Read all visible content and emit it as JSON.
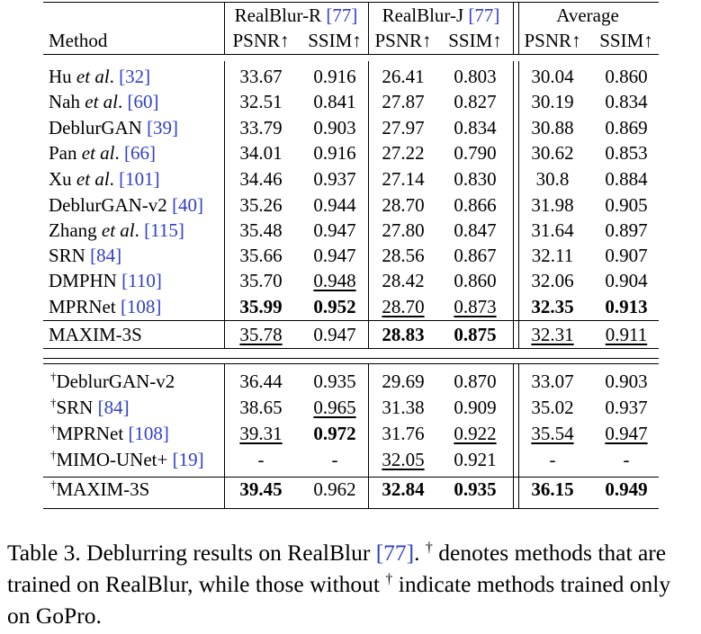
{
  "table": {
    "groups": [
      "RealBlur-R",
      "RealBlur-J",
      "Average"
    ],
    "group_cites": [
      "[77]",
      "[77]",
      ""
    ],
    "method_header": "Method",
    "metric_headers": [
      "PSNR↑",
      "SSIM↑",
      "PSNR↑",
      "SSIM↑",
      "PSNR↑",
      "SSIM↑"
    ],
    "rows": [
      {
        "pre": "Hu ",
        "it": "et al",
        "post": ". ",
        "cite": "[32]",
        "dag": false,
        "vals": [
          "33.67",
          "0.916",
          "26.41",
          "0.803",
          "30.04",
          "0.860"
        ],
        "bold": [
          0,
          0,
          0,
          0,
          0,
          0
        ],
        "ul": [
          0,
          0,
          0,
          0,
          0,
          0
        ]
      },
      {
        "pre": "Nah ",
        "it": "et al",
        "post": ". ",
        "cite": "[60]",
        "dag": false,
        "vals": [
          "32.51",
          "0.841",
          "27.87",
          "0.827",
          "30.19",
          "0.834"
        ],
        "bold": [
          0,
          0,
          0,
          0,
          0,
          0
        ],
        "ul": [
          0,
          0,
          0,
          0,
          0,
          0
        ]
      },
      {
        "pre": "DeblurGAN ",
        "it": "",
        "post": "",
        "cite": "[39]",
        "dag": false,
        "vals": [
          "33.79",
          "0.903",
          "27.97",
          "0.834",
          "30.88",
          "0.869"
        ],
        "bold": [
          0,
          0,
          0,
          0,
          0,
          0
        ],
        "ul": [
          0,
          0,
          0,
          0,
          0,
          0
        ]
      },
      {
        "pre": "Pan ",
        "it": "et al",
        "post": ". ",
        "cite": "[66]",
        "dag": false,
        "vals": [
          "34.01",
          "0.916",
          "27.22",
          "0.790",
          "30.62",
          "0.853"
        ],
        "bold": [
          0,
          0,
          0,
          0,
          0,
          0
        ],
        "ul": [
          0,
          0,
          0,
          0,
          0,
          0
        ]
      },
      {
        "pre": "Xu ",
        "it": "et al",
        "post": ". ",
        "cite": "[101]",
        "dag": false,
        "vals": [
          "34.46",
          "0.937",
          "27.14",
          "0.830",
          "30.8",
          "0.884"
        ],
        "bold": [
          0,
          0,
          0,
          0,
          0,
          0
        ],
        "ul": [
          0,
          0,
          0,
          0,
          0,
          0
        ]
      },
      {
        "pre": "DeblurGAN-v2 ",
        "it": "",
        "post": "",
        "cite": "[40]",
        "dag": false,
        "vals": [
          "35.26",
          "0.944",
          "28.70",
          "0.866",
          "31.98",
          "0.905"
        ],
        "bold": [
          0,
          0,
          0,
          0,
          0,
          0
        ],
        "ul": [
          0,
          0,
          0,
          0,
          0,
          0
        ]
      },
      {
        "pre": "Zhang ",
        "it": "et al",
        "post": ". ",
        "cite": "[115]",
        "dag": false,
        "vals": [
          "35.48",
          "0.947",
          "27.80",
          "0.847",
          "31.64",
          "0.897"
        ],
        "bold": [
          0,
          0,
          0,
          0,
          0,
          0
        ],
        "ul": [
          0,
          0,
          0,
          0,
          0,
          0
        ]
      },
      {
        "pre": "SRN ",
        "it": "",
        "post": "",
        "cite": "[84]",
        "dag": false,
        "vals": [
          "35.66",
          "0.947",
          "28.56",
          "0.867",
          "32.11",
          "0.907"
        ],
        "bold": [
          0,
          0,
          0,
          0,
          0,
          0
        ],
        "ul": [
          0,
          0,
          0,
          0,
          0,
          0
        ]
      },
      {
        "pre": "DMPHN ",
        "it": "",
        "post": "",
        "cite": "[110]",
        "dag": false,
        "vals": [
          "35.70",
          "0.948",
          "28.42",
          "0.860",
          "32.06",
          "0.904"
        ],
        "bold": [
          0,
          0,
          0,
          0,
          0,
          0
        ],
        "ul": [
          0,
          1,
          0,
          0,
          0,
          0
        ]
      },
      {
        "pre": "MPRNet ",
        "it": "",
        "post": "",
        "cite": "[108]",
        "dag": false,
        "vals": [
          "35.99",
          "0.952",
          "28.70",
          "0.873",
          "32.35",
          "0.913"
        ],
        "bold": [
          1,
          1,
          0,
          0,
          1,
          1
        ],
        "ul": [
          0,
          0,
          1,
          1,
          0,
          0
        ]
      },
      {
        "pre": "MAXIM-3S",
        "it": "",
        "post": "",
        "cite": "",
        "dag": false,
        "vals": [
          "35.78",
          "0.947",
          "28.83",
          "0.875",
          "32.31",
          "0.911"
        ],
        "bold": [
          0,
          0,
          1,
          1,
          0,
          0
        ],
        "ul": [
          1,
          0,
          0,
          0,
          1,
          1
        ]
      },
      {
        "pre": "DeblurGAN-v2",
        "it": "",
        "post": "",
        "cite": "",
        "dag": true,
        "vals": [
          "36.44",
          "0.935",
          "29.69",
          "0.870",
          "33.07",
          "0.903"
        ],
        "bold": [
          0,
          0,
          0,
          0,
          0,
          0
        ],
        "ul": [
          0,
          0,
          0,
          0,
          0,
          0
        ]
      },
      {
        "pre": "SRN ",
        "it": "",
        "post": "",
        "cite": "[84]",
        "dag": true,
        "vals": [
          "38.65",
          "0.965",
          "31.38",
          "0.909",
          "35.02",
          "0.937"
        ],
        "bold": [
          0,
          0,
          0,
          0,
          0,
          0
        ],
        "ul": [
          0,
          1,
          0,
          0,
          0,
          0
        ]
      },
      {
        "pre": "MPRNet ",
        "it": "",
        "post": "",
        "cite": "[108]",
        "dag": true,
        "vals": [
          "39.31",
          "0.972",
          "31.76",
          "0.922",
          "35.54",
          "0.947"
        ],
        "bold": [
          0,
          1,
          0,
          0,
          0,
          0
        ],
        "ul": [
          1,
          0,
          0,
          1,
          1,
          1
        ]
      },
      {
        "pre": "MIMO-UNet+ ",
        "it": "",
        "post": "",
        "cite": "[19]",
        "dag": true,
        "vals": [
          "-",
          "-",
          "32.05",
          "0.921",
          "-",
          "-"
        ],
        "bold": [
          0,
          0,
          0,
          0,
          0,
          0
        ],
        "ul": [
          0,
          0,
          1,
          0,
          0,
          0
        ]
      },
      {
        "pre": "MAXIM-3S",
        "it": "",
        "post": "",
        "cite": "",
        "dag": true,
        "vals": [
          "39.45",
          "0.962",
          "32.84",
          "0.935",
          "36.15",
          "0.949"
        ],
        "bold": [
          1,
          0,
          1,
          1,
          1,
          1
        ],
        "ul": [
          0,
          0,
          0,
          0,
          0,
          0
        ]
      }
    ]
  },
  "caption": {
    "label": "Table 3.",
    "text1": " Deblurring results on RealBlur ",
    "cite": "[77]",
    "text2": ". ",
    "dagger": "†",
    "text3": " denotes methods that are trained on RealBlur, while those without ",
    "text4": " indicate methods trained only on GoPro."
  }
}
